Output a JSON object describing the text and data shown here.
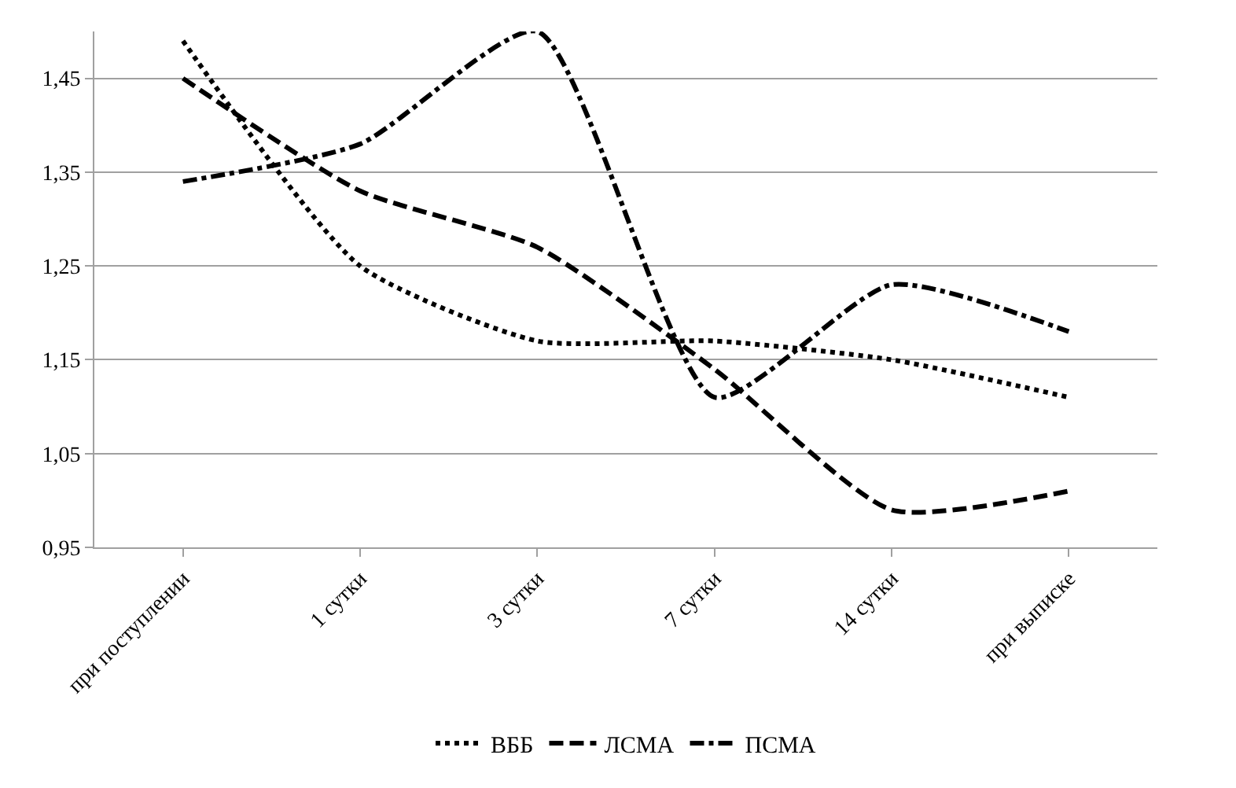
{
  "chart_data": {
    "type": "line",
    "categories": [
      "при поступлении",
      "1 сутки",
      "3 сутки",
      "7 сутки",
      "14 сутки",
      "при выписке"
    ],
    "series": [
      {
        "name": "ВББ",
        "color": "#000000",
        "line_style": "dotted",
        "values": [
          1.49,
          1.25,
          1.17,
          1.17,
          1.15,
          1.11
        ]
      },
      {
        "name": "ЛСМА",
        "color": "#000000",
        "line_style": "dashed",
        "values": [
          1.45,
          1.33,
          1.27,
          1.14,
          0.99,
          1.01
        ]
      },
      {
        "name": "ПСМА",
        "color": "#000000",
        "line_style": "dashdot",
        "values": [
          1.34,
          1.38,
          1.5,
          1.11,
          1.23,
          1.18
        ]
      }
    ],
    "ylim": [
      0.95,
      1.5
    ],
    "yticks": [
      {
        "value": 0.95,
        "label": "0,95"
      },
      {
        "value": 1.05,
        "label": "1,05"
      },
      {
        "value": 1.15,
        "label": "1,15"
      },
      {
        "value": 1.25,
        "label": "1,25"
      },
      {
        "value": 1.35,
        "label": "1,35"
      },
      {
        "value": 1.45,
        "label": "1,45"
      }
    ],
    "grid": "y",
    "legend": "bottom",
    "marker": "none"
  }
}
